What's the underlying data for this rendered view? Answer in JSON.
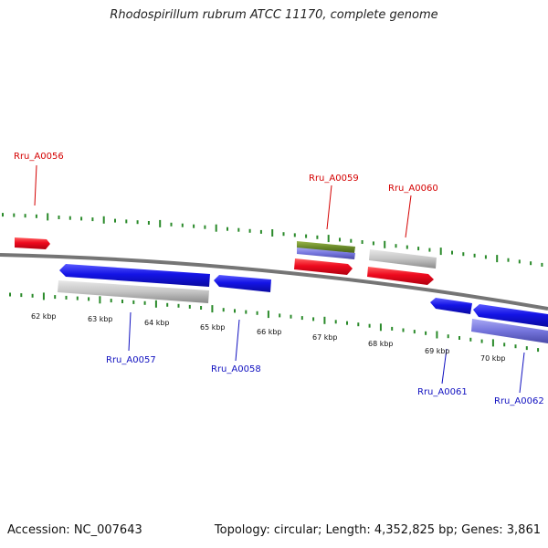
{
  "title": "Rhodospirillum rubrum ATCC 11170, complete genome",
  "footer": {
    "accession": "Accession: NC_007643",
    "summary": "Topology: circular; Length: 4,352,825 bp; Genes: 3,861"
  },
  "colors": {
    "forward_gene": "#e0001b",
    "reverse_gene": "#1010e0",
    "other_feature": "#c0c0c0",
    "rna_feature": "#6a8a2a",
    "secondary_feature": "#7070d8",
    "backbone": "#707070",
    "ticks": "#2a8a2a",
    "forward_label": "#d40000",
    "reverse_label": "#1010c0"
  },
  "kbp_labels": [
    "62 kbp",
    "63 kbp",
    "64 kbp",
    "65 kbp",
    "66 kbp",
    "67 kbp",
    "68 kbp",
    "69 kbp",
    "70 kbp"
  ],
  "gene_labels": [
    "Rru_A0056",
    "Rru_A0059",
    "Rru_A0060",
    "Rru_A0057",
    "Rru_A0058",
    "Rru_A0061",
    "Rru_A0062"
  ]
}
